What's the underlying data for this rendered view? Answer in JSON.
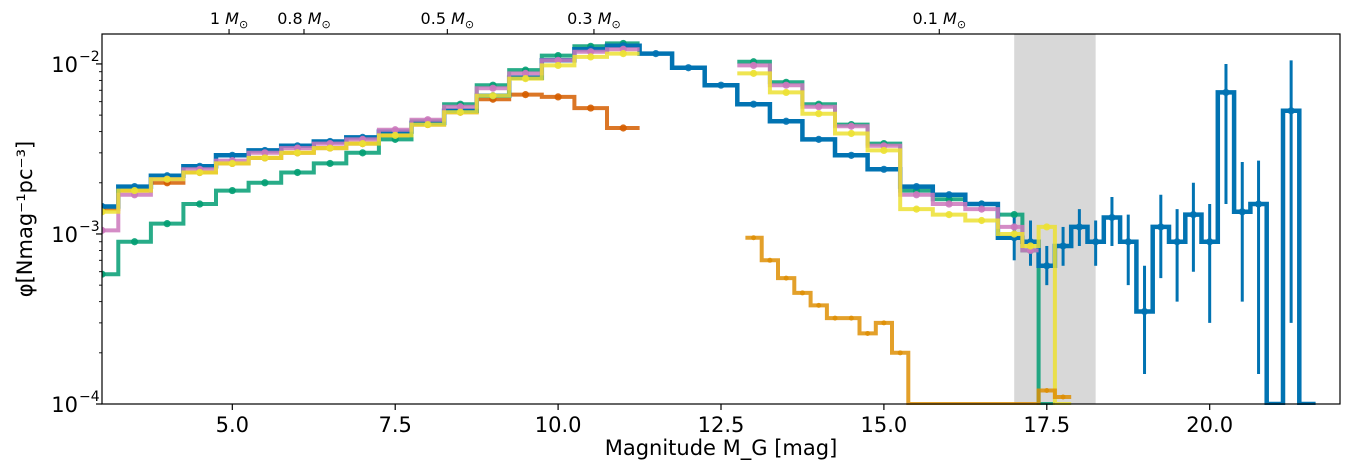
{
  "chart_data": {
    "type": "line",
    "xlabel": "Magnitude M_G [mag]",
    "ylabel": "φ[Nmag⁻¹pc⁻³]",
    "xlim": [
      3.0,
      22.0
    ],
    "ylim": [
      0.0001,
      0.015
    ],
    "yscale": "log",
    "grid": false,
    "x_ticks": [
      5.0,
      7.5,
      10.0,
      12.5,
      15.0,
      17.5,
      20.0
    ],
    "x_tick_labels": [
      "5.0",
      "7.5",
      "10.0",
      "12.5",
      "15.0",
      "17.5",
      "20.0"
    ],
    "y_ticks": [
      0.0001,
      0.001,
      0.01
    ],
    "y_tick_labels": [
      "10",
      "10",
      "10"
    ],
    "y_tick_exponents": [
      "−4",
      "−3",
      "−2"
    ],
    "top_axis": {
      "ticks": [
        4.95,
        6.1,
        8.3,
        10.55,
        15.85
      ],
      "labels": [
        "1",
        "0.8",
        "0.5",
        "0.3",
        "0.1"
      ],
      "unit": "M"
    },
    "shaded_region": [
      17.0,
      18.25
    ],
    "colors": {
      "blue": "#0173b2",
      "orange": "#de8f05",
      "vermillion": "#d55e00",
      "green": "#029e73",
      "pink": "#cc78bc",
      "yellow": "#ece133",
      "shade": "#d8d8d8"
    },
    "series": [
      {
        "color": "blue",
        "x": [
          3.0,
          3.5,
          4.0,
          4.5,
          5.0,
          5.5,
          6.0,
          6.5,
          7.0,
          7.5,
          8.0,
          8.5,
          9.0,
          9.5,
          10.0,
          10.5,
          11.0,
          11.5,
          12.0,
          12.5,
          13.0,
          13.5,
          14.0,
          14.5,
          15.0,
          15.5,
          16.0,
          16.5,
          17.0,
          17.25,
          17.5,
          17.75,
          18.0,
          18.25,
          18.5,
          18.75,
          19.0,
          19.25,
          19.5,
          19.75,
          20.0,
          20.25,
          20.5,
          20.75,
          21.0,
          21.25,
          21.5
        ],
        "y": [
          0.00145,
          0.0019,
          0.0022,
          0.0025,
          0.0029,
          0.0031,
          0.0033,
          0.0035,
          0.0037,
          0.004,
          0.0045,
          0.0053,
          0.0065,
          0.0083,
          0.0105,
          0.0122,
          0.0128,
          0.0115,
          0.0095,
          0.0075,
          0.0058,
          0.0046,
          0.0036,
          0.0029,
          0.0024,
          0.0019,
          0.0017,
          0.0015,
          0.00095,
          0.0009,
          0.00065,
          0.00085,
          0.0011,
          0.0009,
          0.00125,
          0.0009,
          0.00035,
          0.0011,
          0.0009,
          0.0013,
          0.0009,
          0.0068,
          0.00135,
          0.0015,
          0.0001,
          0.0053,
          0.0001
        ],
        "yerr_lo": [
          0,
          0,
          0,
          0,
          0,
          0,
          0,
          0,
          0,
          0,
          0,
          0,
          0,
          0,
          0,
          0,
          0,
          0,
          0,
          0,
          0,
          0,
          0,
          0,
          0,
          0,
          0,
          0,
          0.00025,
          0.00025,
          0.00015,
          0.0002,
          0.00025,
          0.00025,
          0.0004,
          0.0004,
          0.0002,
          0.00055,
          0.0005,
          0.0007,
          0.0006,
          0.0053,
          0.00095,
          0.00135,
          0,
          0.005,
          0
        ],
        "yerr_hi": [
          0,
          0,
          0,
          0,
          0,
          0,
          0,
          0,
          0,
          0,
          0,
          0,
          0,
          0,
          0,
          0,
          0,
          0,
          0,
          0,
          0,
          0,
          0,
          0,
          0,
          0,
          0,
          0,
          0.0003,
          0.0003,
          0.0002,
          0.00025,
          0.0003,
          0.0003,
          0.0004,
          0.0004,
          0.0003,
          0.0006,
          0.0005,
          0.0007,
          0.0006,
          0.0032,
          0.0013,
          0.0012,
          0,
          0.0052,
          0
        ]
      },
      {
        "color": "green",
        "x": [
          3.0,
          3.5,
          4.0,
          4.5,
          5.0,
          5.5,
          6.0,
          6.5,
          7.0,
          7.5,
          8.0,
          8.5,
          9.0,
          9.5,
          10.0,
          10.5,
          11.0,
          13.0,
          13.5,
          14.0,
          14.5,
          15.0,
          15.5,
          16.0,
          16.5,
          17.0,
          17.25,
          17.5
        ],
        "y": [
          0.00058,
          0.0009,
          0.00115,
          0.0015,
          0.0018,
          0.002,
          0.0023,
          0.0026,
          0.003,
          0.0036,
          0.0046,
          0.0058,
          0.0075,
          0.0092,
          0.0112,
          0.0127,
          0.0132,
          0.0103,
          0.0078,
          0.0058,
          0.0044,
          0.0034,
          0.0018,
          0.0016,
          0.0015,
          0.0013,
          0.0008,
          0.0001
        ]
      },
      {
        "color": "pink",
        "x": [
          3.0,
          3.5,
          4.0,
          4.5,
          5.0,
          5.5,
          6.0,
          6.5,
          7.0,
          7.5,
          8.0,
          8.5,
          9.0,
          9.5,
          10.0,
          10.5,
          11.0,
          13.0,
          13.5,
          14.0,
          14.5,
          15.0,
          15.5,
          16.0,
          16.5,
          17.0,
          17.25
        ],
        "y": [
          0.00105,
          0.0017,
          0.0021,
          0.0024,
          0.0027,
          0.003,
          0.0032,
          0.0034,
          0.0036,
          0.0041,
          0.0047,
          0.0056,
          0.0072,
          0.0088,
          0.0105,
          0.0118,
          0.0122,
          0.0098,
          0.0075,
          0.0056,
          0.0043,
          0.0033,
          0.0017,
          0.0015,
          0.0014,
          0.0011,
          0.0008
        ]
      },
      {
        "color": "yellow",
        "x": [
          3.0,
          3.5,
          4.0,
          4.5,
          5.0,
          5.5,
          6.0,
          6.5,
          7.0,
          7.5,
          8.0,
          8.5,
          9.0,
          9.5,
          10.0,
          10.5,
          11.0,
          13.0,
          13.5,
          14.0,
          14.5,
          15.0,
          15.5,
          16.0,
          16.5,
          17.0,
          17.25,
          17.5,
          17.75
        ],
        "y": [
          0.00135,
          0.0018,
          0.0021,
          0.0023,
          0.0026,
          0.0028,
          0.003,
          0.0032,
          0.0034,
          0.0038,
          0.0044,
          0.0052,
          0.0065,
          0.0082,
          0.0098,
          0.011,
          0.0115,
          0.0088,
          0.0068,
          0.0051,
          0.0039,
          0.0031,
          0.0014,
          0.0013,
          0.0012,
          0.001,
          0.00085,
          0.0011,
          0.0001
        ]
      },
      {
        "color": "vermillion",
        "x": [
          3.0,
          3.5,
          4.0,
          4.5,
          5.0,
          5.5,
          6.0,
          6.5,
          7.0,
          7.5,
          8.0,
          8.5,
          9.0,
          9.5,
          10.0,
          10.5,
          11.0
        ],
        "y": [
          0.0014,
          0.0018,
          0.002,
          0.0023,
          0.0026,
          0.0028,
          0.003,
          0.0032,
          0.0034,
          0.0038,
          0.0044,
          0.0052,
          0.0062,
          0.0066,
          0.0064,
          0.0055,
          0.0042
        ]
      },
      {
        "color": "orange",
        "x": [
          13.0,
          13.25,
          13.5,
          13.75,
          14.0,
          14.25,
          14.5,
          14.75,
          15.0,
          15.25,
          15.5,
          15.75,
          16.0,
          16.25,
          16.5,
          16.75,
          17.0,
          17.25,
          17.5,
          17.75
        ],
        "y": [
          0.00095,
          0.0007,
          0.00055,
          0.00045,
          0.00038,
          0.00032,
          0.00032,
          0.00026,
          0.0003,
          0.0002,
          0.0001,
          0.0001,
          0.0001,
          0.0001,
          0.0001,
          0.0001,
          0.0001,
          0.0001,
          0.00012,
          0.00011
        ]
      }
    ]
  }
}
